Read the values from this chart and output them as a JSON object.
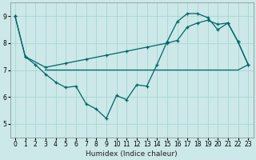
{
  "bg_color": "#cce8e8",
  "grid_color": "#aad4d4",
  "line_color": "#006666",
  "xlabel": "Humidex (Indice chaleur)",
  "xlim": [
    -0.5,
    23.5
  ],
  "ylim": [
    4.5,
    9.5
  ],
  "xticks": [
    0,
    1,
    2,
    3,
    4,
    5,
    6,
    7,
    8,
    9,
    10,
    11,
    12,
    13,
    14,
    15,
    16,
    17,
    18,
    19,
    20,
    21,
    22,
    23
  ],
  "yticks": [
    5,
    6,
    7,
    8,
    9
  ],
  "series1_x": [
    0,
    1,
    2,
    3,
    4,
    5,
    6,
    7,
    8,
    9,
    10,
    11,
    12,
    13,
    14,
    15,
    16,
    17,
    18,
    19,
    20,
    21,
    22,
    23
  ],
  "series1_y": [
    9.0,
    7.5,
    7.2,
    6.85,
    6.55,
    6.35,
    6.4,
    5.75,
    5.55,
    5.2,
    6.05,
    5.9,
    6.45,
    6.4,
    7.2,
    8.05,
    8.8,
    9.1,
    9.1,
    8.95,
    8.5,
    8.75,
    8.05,
    7.2
  ],
  "series2_x": [
    0,
    1,
    3,
    5,
    7,
    9,
    11,
    13,
    15,
    16,
    17,
    18,
    19,
    20,
    21,
    22,
    23
  ],
  "series2_y": [
    9.0,
    7.5,
    7.1,
    7.25,
    7.4,
    7.55,
    7.7,
    7.85,
    8.0,
    8.1,
    8.6,
    8.75,
    8.85,
    8.7,
    8.75,
    8.05,
    7.2
  ],
  "series3_x": [
    3,
    10,
    14,
    15,
    21,
    22,
    23
  ],
  "series3_y": [
    7.0,
    7.0,
    7.0,
    7.0,
    7.0,
    7.0,
    7.2
  ]
}
